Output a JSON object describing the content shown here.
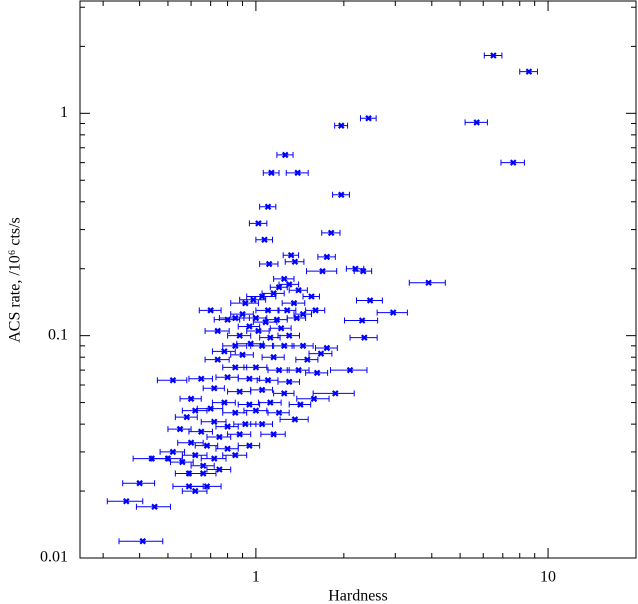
{
  "chart_data": {
    "type": "scatter",
    "x_label": "Hardness",
    "y_label": "ACS rate, /10⁶ cts/s",
    "xscale": "log",
    "yscale": "log",
    "xlim": [
      0.25,
      20
    ],
    "ylim": [
      0.01,
      3.2
    ],
    "xticks": [
      1,
      10
    ],
    "yticks": [
      0.01,
      0.1,
      1
    ],
    "series": [
      {
        "color": "#0000ff",
        "x": [
          6.5,
          8.6,
          5.7,
          2.43,
          1.96,
          7.6,
          1.26,
          1.39,
          1.13,
          1.96,
          1.1,
          1.02,
          1.81,
          1.07,
          3.9,
          1.75,
          2.19,
          2.33,
          1.69,
          1.36,
          1.11,
          1.32,
          2.46,
          2.95,
          2.31,
          2.35,
          1.67,
          1.58,
          1.87,
          1.36,
          1.25,
          1.3,
          1.4,
          1.2,
          1.15,
          1.05,
          0.98,
          0.92,
          1.35,
          1.55,
          1.28,
          1.1,
          0.9,
          0.85,
          0.8,
          1.0,
          1.08,
          1.18,
          1.38,
          1.45,
          1.6,
          0.95,
          1.02,
          1.22,
          0.74,
          0.7,
          0.88,
          1.3,
          1.12,
          0.96,
          0.85,
          1.05,
          1.25,
          1.45,
          1.75,
          0.78,
          0.9,
          1.15,
          1.5,
          0.74,
          0.85,
          1.0,
          1.2,
          1.4,
          1.62,
          2.1,
          0.8,
          0.95,
          1.1,
          1.3,
          0.65,
          0.52,
          0.72,
          0.88,
          1.05,
          1.25,
          0.6,
          0.78,
          0.95,
          1.12,
          1.42,
          0.62,
          0.7,
          0.85,
          1.0,
          1.2,
          0.58,
          0.72,
          0.8,
          0.92,
          1.05,
          0.55,
          0.65,
          0.75,
          0.88,
          1.15,
          0.6,
          0.68,
          0.8,
          0.95,
          0.52,
          0.62,
          0.72,
          0.85,
          0.56,
          0.66,
          0.75,
          0.59,
          0.44,
          0.5,
          0.41,
          0.45,
          0.36,
          0.4,
          0.59,
          0.62,
          0.68,
          0.66
        ],
        "y": [
          1.82,
          1.54,
          0.91,
          0.95,
          0.88,
          0.6,
          0.65,
          0.54,
          0.54,
          0.43,
          0.38,
          0.32,
          0.29,
          0.27,
          0.173,
          0.226,
          0.2,
          0.195,
          0.195,
          0.215,
          0.21,
          0.23,
          0.144,
          0.127,
          0.117,
          0.098,
          0.083,
          0.052,
          0.055,
          0.042,
          0.18,
          0.17,
          0.16,
          0.165,
          0.155,
          0.15,
          0.145,
          0.14,
          0.14,
          0.15,
          0.13,
          0.13,
          0.125,
          0.12,
          0.118,
          0.12,
          0.115,
          0.118,
          0.12,
          0.125,
          0.13,
          0.11,
          0.105,
          0.108,
          0.105,
          0.13,
          0.1,
          0.1,
          0.098,
          0.092,
          0.09,
          0.09,
          0.09,
          0.09,
          0.088,
          0.085,
          0.082,
          0.08,
          0.078,
          0.078,
          0.072,
          0.072,
          0.07,
          0.07,
          0.068,
          0.07,
          0.065,
          0.064,
          0.063,
          0.062,
          0.064,
          0.063,
          0.058,
          0.056,
          0.057,
          0.055,
          0.052,
          0.05,
          0.049,
          0.05,
          0.049,
          0.046,
          0.047,
          0.045,
          0.046,
          0.045,
          0.043,
          0.041,
          0.039,
          0.04,
          0.04,
          0.038,
          0.037,
          0.035,
          0.036,
          0.036,
          0.033,
          0.032,
          0.031,
          0.032,
          0.03,
          0.029,
          0.028,
          0.029,
          0.027,
          0.026,
          0.025,
          0.024,
          0.028,
          0.028,
          0.0119,
          0.017,
          0.018,
          0.0217,
          0.021,
          0.02,
          0.021,
          0.024
        ],
        "xerr": [
          0.45,
          0.6,
          0.5,
          0.15,
          0.1,
          0.7,
          0.08,
          0.12,
          0.07,
          0.13,
          0.07,
          0.07,
          0.13,
          0.07,
          0.55,
          0.12,
          0.15,
          0.16,
          0.2,
          0.1,
          0.08,
          0.08,
          0.25,
          0.35,
          0.3,
          0.25,
          0.15,
          0.2,
          0.3,
          0.15,
          0.1,
          0.1,
          0.1,
          0.08,
          0.1,
          0.12,
          0.1,
          0.1,
          0.12,
          0.1,
          0.09,
          0.1,
          0.08,
          0.1,
          0.08,
          0.09,
          0.1,
          0.1,
          0.1,
          0.1,
          0.12,
          0.08,
          0.09,
          0.1,
          0.07,
          0.06,
          0.08,
          0.11,
          0.09,
          0.1,
          0.08,
          0.09,
          0.1,
          0.12,
          0.15,
          0.07,
          0.08,
          0.1,
          0.13,
          0.07,
          0.08,
          0.09,
          0.1,
          0.12,
          0.14,
          0.3,
          0.07,
          0.08,
          0.09,
          0.11,
          0.06,
          0.06,
          0.06,
          0.08,
          0.09,
          0.1,
          0.05,
          0.07,
          0.08,
          0.1,
          0.12,
          0.06,
          0.07,
          0.08,
          0.09,
          0.1,
          0.05,
          0.07,
          0.07,
          0.08,
          0.09,
          0.05,
          0.06,
          0.07,
          0.08,
          0.11,
          0.06,
          0.06,
          0.07,
          0.08,
          0.05,
          0.06,
          0.07,
          0.08,
          0.05,
          0.06,
          0.07,
          0.06,
          0.06,
          0.06,
          0.07,
          0.06,
          0.05,
          0.05,
          0.07,
          0.06,
          0.08,
          0.07
        ]
      }
    ]
  }
}
